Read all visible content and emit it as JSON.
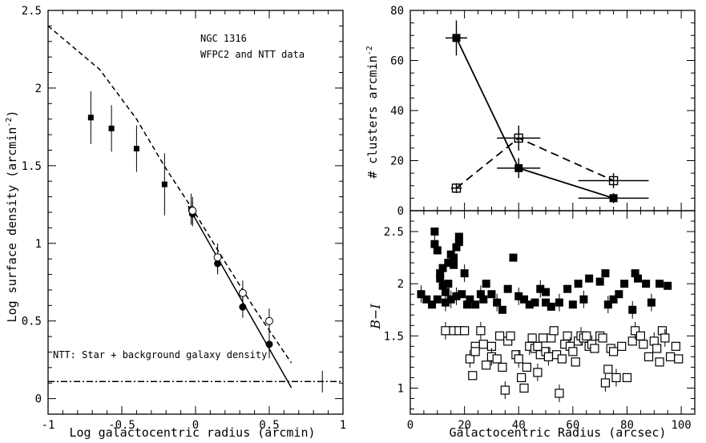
{
  "chart_data": [
    {
      "type": "scatter",
      "xlabel": "Log galactocentric radius (arcmin)",
      "ylabel": "Log surface density (arcmin",
      "ylabel_sup": "-2",
      "ylabel_close": ")",
      "xlim": [
        -1,
        1
      ],
      "ylim": [
        -0.1,
        2.5
      ],
      "xticks": [
        "-1",
        "-0.5",
        "0",
        "0.5",
        "1"
      ],
      "yticks": [
        "0",
        "0.5",
        "1",
        "1.5",
        "2",
        "2.5"
      ],
      "annotations": [
        "NGC 1316",
        "WFPC2 and NTT data",
        "NTT: Star + background galaxy density"
      ],
      "series": [
        {
          "marker": "filled-square",
          "points": [
            {
              "x": -0.71,
              "y": 1.81,
              "err": 0.17
            },
            {
              "x": -0.57,
              "y": 1.74,
              "err": 0.15
            },
            {
              "x": -0.4,
              "y": 1.61,
              "err": 0.15
            },
            {
              "x": -0.21,
              "y": 1.38,
              "err": 0.2
            },
            {
              "x": -0.03,
              "y": 1.22,
              "err": 0.1
            }
          ]
        },
        {
          "marker": "filled-circle",
          "points": [
            {
              "x": -0.02,
              "y": 1.19,
              "err": 0.08
            },
            {
              "x": 0.15,
              "y": 0.87,
              "err": 0.07
            },
            {
              "x": 0.32,
              "y": 0.59,
              "err": 0.07
            },
            {
              "x": 0.5,
              "y": 0.35,
              "err": 0.09
            }
          ]
        },
        {
          "marker": "open-circle",
          "points": [
            {
              "x": -0.02,
              "y": 1.21,
              "err": 0.09
            },
            {
              "x": 0.15,
              "y": 0.91,
              "err": 0.09
            },
            {
              "x": 0.32,
              "y": 0.68,
              "err": 0.08
            },
            {
              "x": 0.5,
              "y": 0.5,
              "err": 0.08
            }
          ]
        },
        {
          "marker": "none",
          "points": [
            {
              "x": 0.86,
              "y": 0.11,
              "err": 0.07
            }
          ]
        }
      ],
      "lines": [
        {
          "style": "dashed",
          "points": [
            [
              -1,
              2.4
            ],
            [
              -0.65,
              2.12
            ],
            [
              -0.4,
              1.8
            ],
            [
              -0.2,
              1.48
            ],
            [
              0.0,
              1.19
            ],
            [
              0.2,
              0.88
            ],
            [
              0.4,
              0.58
            ],
            [
              0.65,
              0.23
            ]
          ]
        },
        {
          "style": "solid",
          "points": [
            [
              -0.05,
              1.24
            ],
            [
              0.65,
              0.07
            ]
          ]
        },
        {
          "style": "dash-dot",
          "points": [
            [
              -1,
              0.11
            ],
            [
              1,
              0.11
            ]
          ]
        }
      ]
    },
    {
      "type": "line",
      "ylabel": "# clusters arcmin",
      "ylabel_sup": "-2",
      "xlim": [
        0,
        105
      ],
      "ylim": [
        0,
        80
      ],
      "yticks": [
        "0",
        "20",
        "40",
        "60",
        "80"
      ],
      "series": [
        {
          "style": "solid",
          "marker": "filled-square",
          "points": [
            {
              "x": 17,
              "y": 69,
              "xerr": 4,
              "yerr": 7
            },
            {
              "x": 40,
              "y": 17,
              "xerr": 8,
              "yerr": 4
            },
            {
              "x": 75,
              "y": 5,
              "xerr": 13,
              "yerr": 2
            }
          ]
        },
        {
          "style": "dashed",
          "marker": "open-square",
          "points": [
            {
              "x": 17,
              "y": 9,
              "xerr": 2,
              "yerr": 2
            },
            {
              "x": 40,
              "y": 29,
              "xerr": 8,
              "yerr": 5
            },
            {
              "x": 75,
              "y": 12,
              "xerr": 13,
              "yerr": 3
            }
          ]
        }
      ]
    },
    {
      "type": "scatter",
      "xlabel": "Galactocentric Radius (arcsec)",
      "ylabel": "B−I",
      "xlim": [
        0,
        105
      ],
      "ylim": [
        0.75,
        2.7
      ],
      "xticks": [
        "0",
        "20",
        "40",
        "60",
        "80",
        "100"
      ],
      "yticks": [
        "1",
        "1.5",
        "2",
        "2.5"
      ],
      "series": [
        {
          "marker": "filled-square",
          "points": [
            [
              4,
              1.9
            ],
            [
              6,
              1.85
            ],
            [
              8,
              1.8
            ],
            [
              9,
              2.5
            ],
            [
              9,
              2.38
            ],
            [
              10,
              2.32
            ],
            [
              10,
              1.85
            ],
            [
              11,
              2.1
            ],
            [
              11,
              2.05
            ],
            [
              12,
              2.15
            ],
            [
              12,
              1.98
            ],
            [
              13,
              1.92
            ],
            [
              13,
              1.82
            ],
            [
              14,
              2.0
            ],
            [
              14,
              2.2
            ],
            [
              15,
              2.28
            ],
            [
              15,
              1.85
            ],
            [
              16,
              2.25
            ],
            [
              16,
              2.18
            ],
            [
              17,
              2.35
            ],
            [
              17,
              1.88
            ],
            [
              18,
              2.4
            ],
            [
              18,
              2.45
            ],
            [
              19,
              1.9
            ],
            [
              20,
              2.1
            ],
            [
              21,
              1.8
            ],
            [
              22,
              1.85
            ],
            [
              24,
              1.8
            ],
            [
              26,
              1.9
            ],
            [
              27,
              1.85
            ],
            [
              28,
              2.0
            ],
            [
              30,
              1.9
            ],
            [
              32,
              1.82
            ],
            [
              34,
              1.75
            ],
            [
              36,
              1.95
            ],
            [
              38,
              2.25
            ],
            [
              40,
              1.88
            ],
            [
              42,
              1.85
            ],
            [
              44,
              1.8
            ],
            [
              46,
              1.82
            ],
            [
              48,
              1.95
            ],
            [
              50,
              1.92
            ],
            [
              50,
              1.82
            ],
            [
              52,
              1.78
            ],
            [
              55,
              1.82
            ],
            [
              58,
              1.95
            ],
            [
              60,
              1.8
            ],
            [
              62,
              2.0
            ],
            [
              64,
              1.85
            ],
            [
              66,
              2.05
            ],
            [
              70,
              2.02
            ],
            [
              72,
              2.1
            ],
            [
              73,
              1.8
            ],
            [
              75,
              1.85
            ],
            [
              77,
              1.9
            ],
            [
              79,
              2.0
            ],
            [
              82,
              1.75
            ],
            [
              83,
              2.1
            ],
            [
              84,
              2.05
            ],
            [
              87,
              2.0
            ],
            [
              89,
              1.82
            ],
            [
              92,
              2.0
            ],
            [
              95,
              1.98
            ]
          ]
        },
        {
          "marker": "open-square",
          "points": [
            [
              13,
              1.55
            ],
            [
              16,
              1.55
            ],
            [
              18,
              1.55
            ],
            [
              20,
              1.55
            ],
            [
              22,
              1.28
            ],
            [
              23,
              1.12
            ],
            [
              24,
              1.4
            ],
            [
              24,
              1.35
            ],
            [
              26,
              1.55
            ],
            [
              27,
              1.42
            ],
            [
              28,
              1.22
            ],
            [
              30,
              1.4
            ],
            [
              30,
              1.3
            ],
            [
              32,
              1.28
            ],
            [
              33,
              1.5
            ],
            [
              34,
              1.2
            ],
            [
              35,
              0.98
            ],
            [
              36,
              1.45
            ],
            [
              37,
              1.5
            ],
            [
              39,
              1.32
            ],
            [
              40,
              1.28
            ],
            [
              41,
              1.1
            ],
            [
              42,
              1.0
            ],
            [
              43,
              1.2
            ],
            [
              44,
              1.4
            ],
            [
              45,
              1.48
            ],
            [
              46,
              1.38
            ],
            [
              47,
              1.4
            ],
            [
              47,
              1.15
            ],
            [
              48,
              1.32
            ],
            [
              49,
              1.48
            ],
            [
              50,
              1.35
            ],
            [
              51,
              1.3
            ],
            [
              52,
              1.48
            ],
            [
              53,
              1.55
            ],
            [
              54,
              1.32
            ],
            [
              55,
              0.95
            ],
            [
              56,
              1.28
            ],
            [
              57,
              1.42
            ],
            [
              58,
              1.5
            ],
            [
              59,
              1.4
            ],
            [
              60,
              1.35
            ],
            [
              61,
              1.25
            ],
            [
              62,
              1.45
            ],
            [
              63,
              1.5
            ],
            [
              64,
              1.48
            ],
            [
              65,
              1.5
            ],
            [
              66,
              1.4
            ],
            [
              67,
              1.42
            ],
            [
              68,
              1.38
            ],
            [
              70,
              1.5
            ],
            [
              71,
              1.48
            ],
            [
              72,
              1.05
            ],
            [
              73,
              1.18
            ],
            [
              74,
              1.38
            ],
            [
              75,
              1.35
            ],
            [
              76,
              1.1
            ],
            [
              78,
              1.4
            ],
            [
              80,
              1.1
            ],
            [
              82,
              1.45
            ],
            [
              83,
              1.55
            ],
            [
              85,
              1.5
            ],
            [
              86,
              1.42
            ],
            [
              88,
              1.3
            ],
            [
              90,
              1.45
            ],
            [
              91,
              1.38
            ],
            [
              92,
              1.25
            ],
            [
              93,
              1.55
            ],
            [
              94,
              1.48
            ],
            [
              96,
              1.3
            ],
            [
              98,
              1.4
            ],
            [
              99,
              1.28
            ]
          ]
        }
      ]
    }
  ]
}
